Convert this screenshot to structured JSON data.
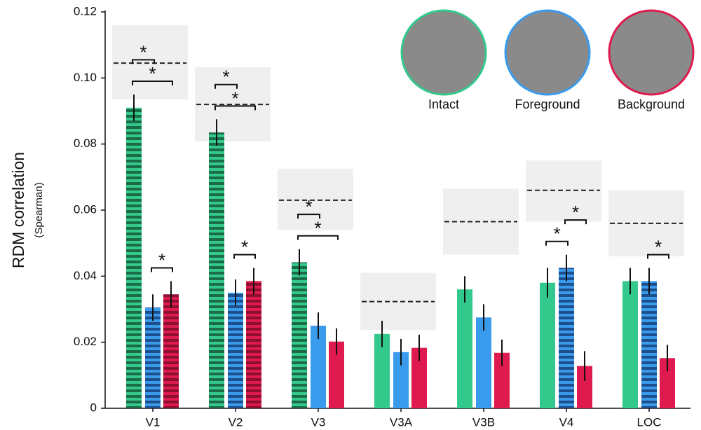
{
  "chart_data": {
    "type": "bar",
    "y_label": "RDM correlation",
    "y_label_sub": "(Spearman)",
    "categories": [
      "V1",
      "V2",
      "V3",
      "V3A",
      "V3B",
      "V4",
      "LOC"
    ],
    "ylim": [
      0,
      0.12
    ],
    "yticks": [
      0,
      0.02,
      0.04,
      0.06,
      0.08,
      {
        "value": 0.1,
        "label": "0.10"
      },
      0.12
    ],
    "series": [
      {
        "name": "Intact",
        "color": "#34c98c",
        "stripe_color": "#1b6b47",
        "values": [
          0.091,
          0.0835,
          0.0442,
          0.0225,
          0.036,
          0.038,
          0.0385
        ],
        "errors": [
          0.004,
          0.004,
          0.004,
          0.004,
          0.004,
          0.0045,
          0.004
        ],
        "striped": [
          true,
          true,
          true,
          false,
          false,
          false,
          false
        ]
      },
      {
        "name": "Foreground",
        "color": "#3a9bec",
        "stripe_color": "#1c4f8c",
        "values": [
          0.0305,
          0.035,
          0.025,
          0.017,
          0.0275,
          0.0425,
          0.0385
        ],
        "errors": [
          0.004,
          0.004,
          0.004,
          0.004,
          0.004,
          0.004,
          0.004
        ],
        "striped": [
          true,
          true,
          false,
          false,
          false,
          true,
          true
        ]
      },
      {
        "name": "Background",
        "color": "#df1a4e",
        "stripe_color": "#8c0f30",
        "values": [
          0.0345,
          0.0385,
          0.0202,
          0.0183,
          0.0168,
          0.0128,
          0.0152
        ],
        "errors": [
          0.004,
          0.004,
          0.004,
          0.004,
          0.004,
          0.0045,
          0.004
        ],
        "striped": [
          true,
          true,
          false,
          false,
          false,
          false,
          false
        ]
      }
    ],
    "noise_ceiling": {
      "mean": [
        0.1045,
        0.092,
        0.063,
        0.0323,
        0.0565,
        0.066,
        0.056
      ],
      "lower": [
        0.0935,
        0.0808,
        0.054,
        0.0237,
        0.0465,
        0.0565,
        0.046
      ],
      "upper": [
        0.116,
        0.1033,
        0.0725,
        0.041,
        0.0665,
        0.075,
        0.066
      ]
    },
    "significance": [
      {
        "category": 0,
        "from": 1,
        "to": 2,
        "label": "*"
      },
      {
        "category": 0,
        "from": 0,
        "to": 2,
        "label": "*"
      },
      {
        "category": 0,
        "from": 0,
        "to": 1,
        "label": "*"
      },
      {
        "category": 1,
        "from": 1,
        "to": 2,
        "label": "*"
      },
      {
        "category": 1,
        "from": 0,
        "to": 2,
        "label": "*"
      },
      {
        "category": 1,
        "from": 0,
        "to": 1,
        "label": "*"
      },
      {
        "category": 2,
        "from": 0,
        "to": 2,
        "label": "*"
      },
      {
        "category": 2,
        "from": 0,
        "to": 1,
        "label": "*"
      },
      {
        "category": 5,
        "from": 0,
        "to": 1,
        "label": "*"
      },
      {
        "category": 5,
        "from": 1,
        "to": 2,
        "label": "*"
      },
      {
        "category": 6,
        "from": 1,
        "to": 2,
        "label": "*"
      }
    ]
  }
}
